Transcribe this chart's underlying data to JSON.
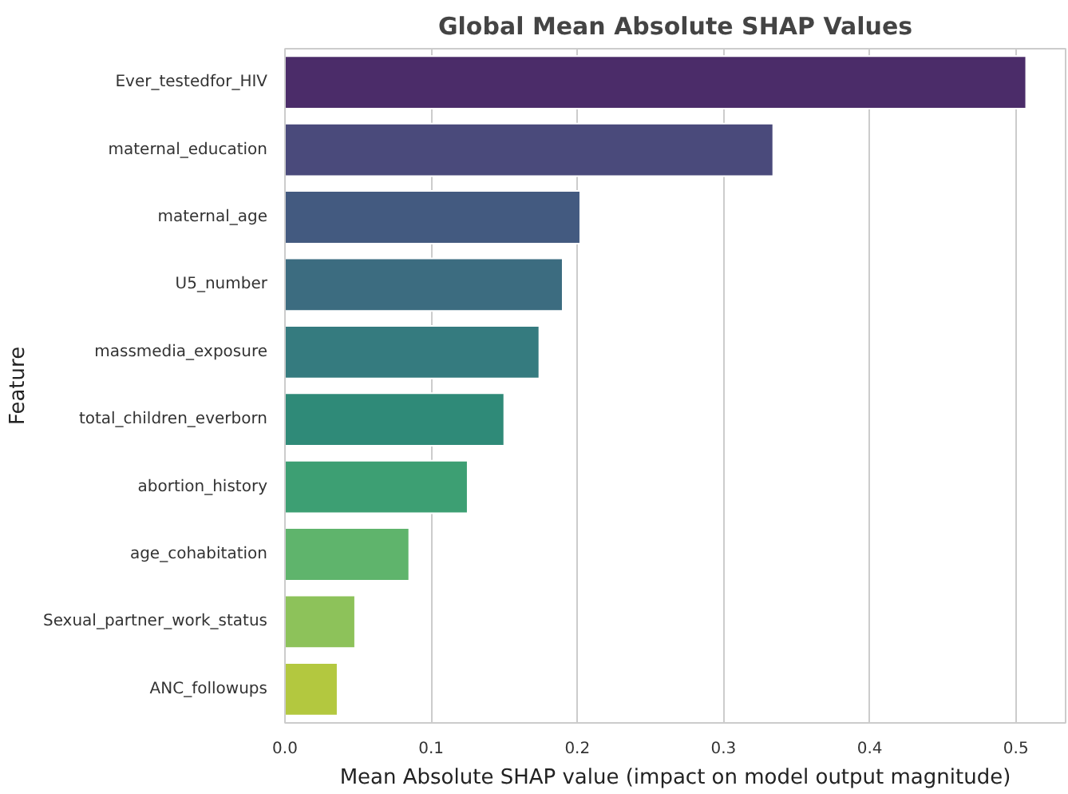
{
  "chart_data": {
    "type": "bar",
    "orientation": "horizontal",
    "title": "Global Mean Absolute SHAP Values",
    "xlabel": "Mean Absolute SHAP value (impact on model output magnitude)",
    "ylabel": "Feature",
    "categories": [
      "Ever_testedfor_HIV",
      "maternal_education",
      "maternal_age",
      "U5_number",
      "massmedia_exposure",
      "total_children_everborn",
      "abortion_history",
      "age_cohabitation",
      "Sexual_partner_work_status",
      "ANC_followups"
    ],
    "values": [
      0.507,
      0.334,
      0.202,
      0.19,
      0.174,
      0.15,
      0.125,
      0.085,
      0.048,
      0.036
    ],
    "colors": [
      "#4b2c69",
      "#4a4a7b",
      "#435a80",
      "#3c6c80",
      "#357b7f",
      "#2f8a78",
      "#3d9f73",
      "#5fb46c",
      "#8dc25a",
      "#b3c83f"
    ],
    "xlim": [
      0,
      0.534
    ],
    "xticks": [
      {
        "value": 0,
        "label": "0.0"
      },
      0.1,
      0.2,
      0.3,
      0.4,
      0.5
    ],
    "grid": "x"
  }
}
